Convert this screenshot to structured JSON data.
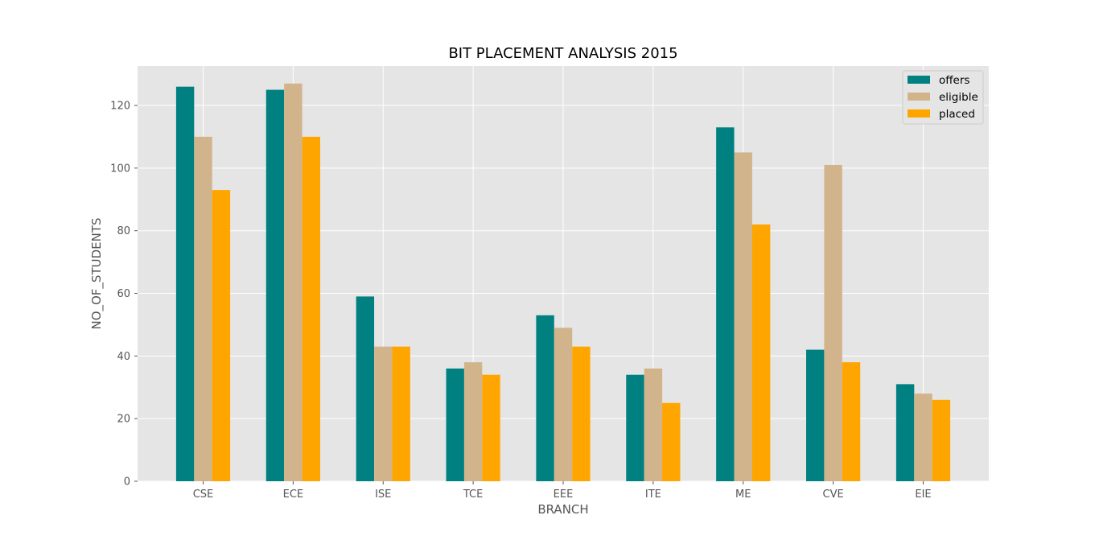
{
  "chart_data": {
    "type": "bar",
    "title": "BIT PLACEMENT ANALYSIS 2015",
    "xlabel": "BRANCH",
    "ylabel": "NO_OF_STUDENTS",
    "categories": [
      "CSE",
      "ECE",
      "ISE",
      "TCE",
      "EEE",
      "ITE",
      "ME",
      "CVE",
      "EIE"
    ],
    "series": [
      {
        "name": "offers",
        "color": "#008080",
        "values": [
          126,
          125,
          59,
          36,
          53,
          34,
          113,
          42,
          31
        ]
      },
      {
        "name": "eligible",
        "color": "#D2B48C",
        "values": [
          110,
          127,
          43,
          38,
          49,
          36,
          105,
          101,
          28
        ]
      },
      {
        "name": "placed",
        "color": "#FFA500",
        "values": [
          93,
          110,
          43,
          34,
          43,
          25,
          82,
          38,
          26
        ]
      }
    ],
    "ylim": [
      0,
      132.6
    ],
    "yticks": [
      0,
      20,
      40,
      60,
      80,
      100,
      120
    ],
    "grid": true,
    "legend_position": "top-right",
    "background": "#E5E5E5"
  }
}
